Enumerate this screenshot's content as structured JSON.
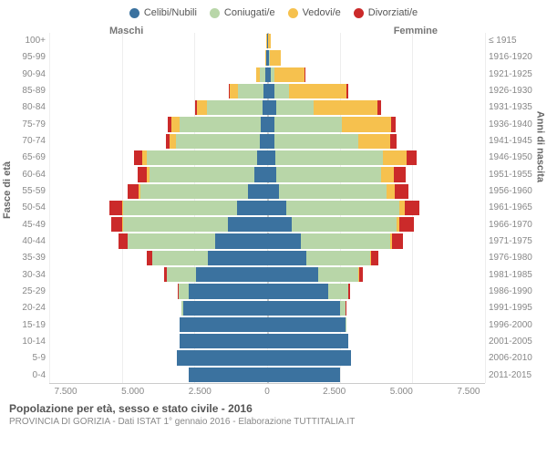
{
  "chart": {
    "type": "population-pyramid",
    "title": "Popolazione per età, sesso e stato civile - 2016",
    "subtitle": "PROVINCIA DI GORIZIA - Dati ISTAT 1° gennaio 2016 - Elaborazione TUTTITALIA.IT",
    "header_male": "Maschi",
    "header_female": "Femmine",
    "y_left_title": "Fasce di età",
    "y_right_title": "Anni di nascita",
    "x_max": 7500,
    "x_ticks": [
      "7.500",
      "5.000",
      "2.500",
      "0",
      "2.500",
      "5.000",
      "7.500"
    ],
    "legend": [
      {
        "label": "Celibi/Nubili",
        "color": "#3b729f"
      },
      {
        "label": "Coniugati/e",
        "color": "#b8d6a8"
      },
      {
        "label": "Vedovi/e",
        "color": "#f6c14e"
      },
      {
        "label": "Divorziati/e",
        "color": "#cb2a2a"
      }
    ],
    "colors": {
      "single": "#3b729f",
      "married": "#b8d6a8",
      "widowed": "#f6c14e",
      "divorced": "#cb2a2a",
      "grid": "#eeeeee",
      "center": "#cccccc",
      "background": "#ffffff",
      "text": "#888888"
    },
    "age_labels": [
      "100+",
      "95-99",
      "90-94",
      "85-89",
      "80-84",
      "75-79",
      "70-74",
      "65-69",
      "60-64",
      "55-59",
      "50-54",
      "45-49",
      "40-44",
      "35-39",
      "30-34",
      "25-29",
      "20-24",
      "15-19",
      "10-14",
      "5-9",
      "0-4"
    ],
    "birth_labels": [
      "≤ 1915",
      "1916-1920",
      "1921-1925",
      "1926-1930",
      "1931-1935",
      "1936-1940",
      "1941-1945",
      "1946-1950",
      "1951-1955",
      "1956-1960",
      "1961-1965",
      "1966-1970",
      "1971-1975",
      "1976-1980",
      "1981-1985",
      "1986-1990",
      "1991-1995",
      "1996-2000",
      "2001-2005",
      "2006-2010",
      "2011-2015"
    ],
    "rows": [
      {
        "m": {
          "single": 10,
          "married": 0,
          "widowed": 10,
          "divorced": 0
        },
        "f": {
          "single": 30,
          "married": 0,
          "widowed": 80,
          "divorced": 0
        }
      },
      {
        "m": {
          "single": 20,
          "married": 20,
          "widowed": 30,
          "divorced": 0
        },
        "f": {
          "single": 60,
          "married": 20,
          "widowed": 400,
          "divorced": 0
        }
      },
      {
        "m": {
          "single": 60,
          "married": 200,
          "widowed": 120,
          "divorced": 10
        },
        "f": {
          "single": 130,
          "married": 120,
          "widowed": 1050,
          "divorced": 20
        }
      },
      {
        "m": {
          "single": 120,
          "married": 900,
          "widowed": 280,
          "divorced": 30
        },
        "f": {
          "single": 240,
          "married": 500,
          "widowed": 2000,
          "divorced": 60
        }
      },
      {
        "m": {
          "single": 170,
          "married": 1900,
          "widowed": 350,
          "divorced": 60
        },
        "f": {
          "single": 300,
          "married": 1300,
          "widowed": 2200,
          "divorced": 110
        }
      },
      {
        "m": {
          "single": 210,
          "married": 2800,
          "widowed": 300,
          "divorced": 100
        },
        "f": {
          "single": 260,
          "married": 2300,
          "widowed": 1700,
          "divorced": 160
        }
      },
      {
        "m": {
          "single": 250,
          "married": 2900,
          "widowed": 200,
          "divorced": 150
        },
        "f": {
          "single": 240,
          "married": 2900,
          "widowed": 1100,
          "divorced": 220
        }
      },
      {
        "m": {
          "single": 350,
          "married": 3800,
          "widowed": 150,
          "divorced": 280
        },
        "f": {
          "single": 290,
          "married": 3700,
          "widowed": 800,
          "divorced": 350
        }
      },
      {
        "m": {
          "single": 450,
          "married": 3600,
          "widowed": 90,
          "divorced": 320
        },
        "f": {
          "single": 320,
          "married": 3600,
          "widowed": 450,
          "divorced": 400
        }
      },
      {
        "m": {
          "single": 650,
          "married": 3700,
          "widowed": 60,
          "divorced": 380
        },
        "f": {
          "single": 420,
          "married": 3700,
          "widowed": 280,
          "divorced": 450
        }
      },
      {
        "m": {
          "single": 1050,
          "married": 3900,
          "widowed": 40,
          "divorced": 440
        },
        "f": {
          "single": 650,
          "married": 3900,
          "widowed": 180,
          "divorced": 520
        }
      },
      {
        "m": {
          "single": 1350,
          "married": 3600,
          "widowed": 30,
          "divorced": 400
        },
        "f": {
          "single": 850,
          "married": 3600,
          "widowed": 110,
          "divorced": 480
        }
      },
      {
        "m": {
          "single": 1800,
          "married": 3000,
          "widowed": 15,
          "divorced": 300
        },
        "f": {
          "single": 1150,
          "married": 3100,
          "widowed": 60,
          "divorced": 380
        }
      },
      {
        "m": {
          "single": 2050,
          "married": 1900,
          "widowed": 8,
          "divorced": 180
        },
        "f": {
          "single": 1350,
          "married": 2200,
          "widowed": 30,
          "divorced": 240
        }
      },
      {
        "m": {
          "single": 2450,
          "married": 1000,
          "widowed": 4,
          "divorced": 80
        },
        "f": {
          "single": 1750,
          "married": 1400,
          "widowed": 15,
          "divorced": 130
        }
      },
      {
        "m": {
          "single": 2700,
          "married": 350,
          "widowed": 2,
          "divorced": 25
        },
        "f": {
          "single": 2100,
          "married": 700,
          "widowed": 6,
          "divorced": 50
        }
      },
      {
        "m": {
          "single": 2900,
          "married": 60,
          "widowed": 0,
          "divorced": 4
        },
        "f": {
          "single": 2500,
          "married": 200,
          "widowed": 2,
          "divorced": 10
        }
      },
      {
        "m": {
          "single": 3000,
          "married": 5,
          "widowed": 0,
          "divorced": 0
        },
        "f": {
          "single": 2700,
          "married": 30,
          "widowed": 0,
          "divorced": 1
        }
      },
      {
        "m": {
          "single": 3000,
          "married": 0,
          "widowed": 0,
          "divorced": 0
        },
        "f": {
          "single": 2800,
          "married": 0,
          "widowed": 0,
          "divorced": 0
        }
      },
      {
        "m": {
          "single": 3100,
          "married": 0,
          "widowed": 0,
          "divorced": 0
        },
        "f": {
          "single": 2900,
          "married": 0,
          "widowed": 0,
          "divorced": 0
        }
      },
      {
        "m": {
          "single": 2700,
          "married": 0,
          "widowed": 0,
          "divorced": 0
        },
        "f": {
          "single": 2500,
          "married": 0,
          "widowed": 0,
          "divorced": 0
        }
      }
    ]
  }
}
